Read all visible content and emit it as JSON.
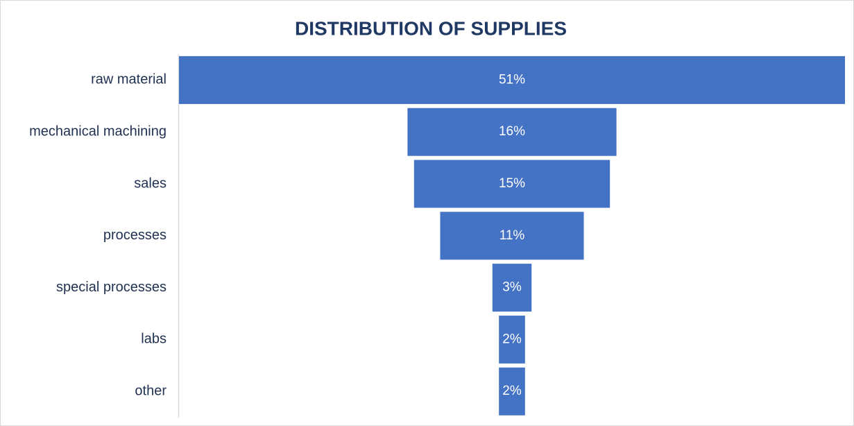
{
  "chart_data": {
    "type": "funnel",
    "title": "DISTRIBUTION OF SUPPLIES",
    "categories": [
      "raw material",
      "mechanical machining",
      "sales",
      "processes",
      "special processes",
      "labs",
      "other"
    ],
    "values": [
      51,
      16,
      15,
      11,
      3,
      2,
      2
    ],
    "value_labels": [
      "51%",
      "16%",
      "15%",
      "11%",
      "3%",
      "2%",
      "2%"
    ],
    "color": "#4472c4"
  }
}
